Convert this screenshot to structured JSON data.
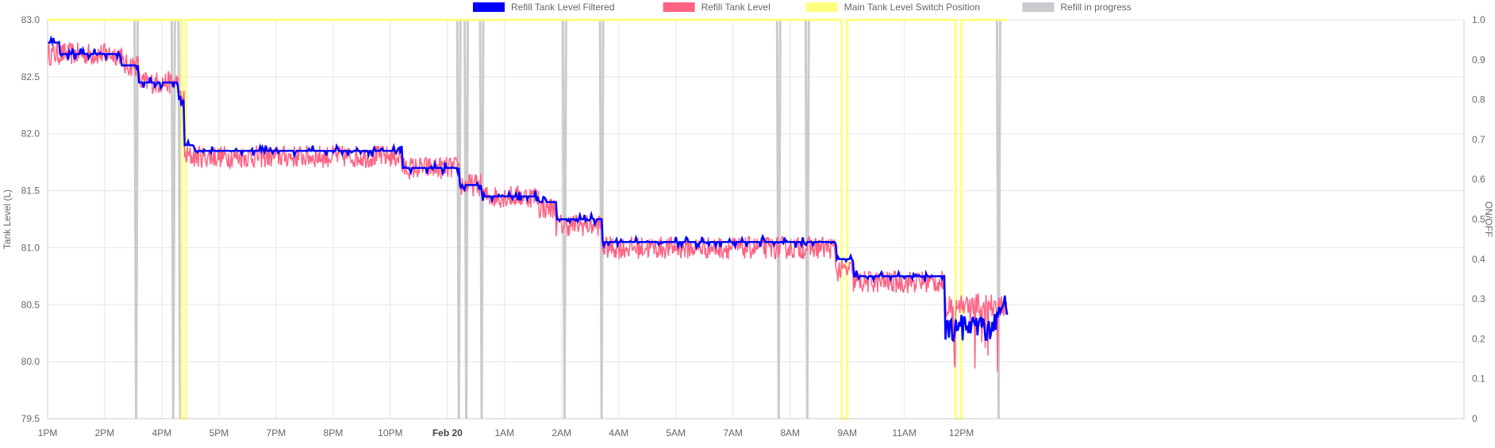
{
  "chart_data": {
    "type": "line",
    "title": "",
    "xlabel": "",
    "ylabel": "Tank Level (L)",
    "y2label": "ON/OFF",
    "ylim": [
      79.5,
      83.0
    ],
    "y2lim": [
      0,
      1
    ],
    "grid": true,
    "legend_position": "top-center",
    "y_ticks": [
      "83.0",
      "82.5",
      "82.0",
      "81.5",
      "81.0",
      "80.5",
      "80.0",
      "79.5"
    ],
    "y2_ticks": [
      "1.0",
      "0.9",
      "0.8",
      "0.7",
      "0.6",
      "0.5",
      "0.4",
      "0.3",
      "0.2",
      "0.1",
      "0"
    ],
    "x_range_hours": [
      0,
      24.8
    ],
    "x_ticks": [
      {
        "label": "1PM",
        "hour": 0,
        "bold": false
      },
      {
        "label": "2PM",
        "hour": 1,
        "bold": false
      },
      {
        "label": "4PM",
        "hour": 2,
        "bold": false
      },
      {
        "label": "5PM",
        "hour": 3,
        "bold": false
      },
      {
        "label": "7PM",
        "hour": 4,
        "bold": false
      },
      {
        "label": "8PM",
        "hour": 5,
        "bold": false
      },
      {
        "label": "10PM",
        "hour": 6,
        "bold": false
      },
      {
        "label": "Feb 20",
        "hour": 7,
        "bold": true
      },
      {
        "label": "1AM",
        "hour": 8,
        "bold": false
      },
      {
        "label": "2AM",
        "hour": 9,
        "bold": false
      },
      {
        "label": "4AM",
        "hour": 10,
        "bold": false
      },
      {
        "label": "5AM",
        "hour": 11,
        "bold": false
      },
      {
        "label": "7AM",
        "hour": 12,
        "bold": false
      },
      {
        "label": "8AM",
        "hour": 13,
        "bold": false
      },
      {
        "label": "9AM",
        "hour": 14,
        "bold": false
      },
      {
        "label": "11AM",
        "hour": 15,
        "bold": false
      },
      {
        "label": "12PM",
        "hour": 16,
        "bold": false
      }
    ],
    "series": [
      {
        "name": "Refill Tank Level Filtered",
        "color": "#0000ff",
        "axis": "left",
        "levels": [
          {
            "from": 0.0,
            "to": 0.2,
            "value": 82.8
          },
          {
            "from": 0.2,
            "to": 1.3,
            "value": 82.7
          },
          {
            "from": 1.3,
            "to": 1.6,
            "value": 82.6
          },
          {
            "from": 1.6,
            "to": 2.3,
            "value": 82.45
          },
          {
            "from": 2.3,
            "to": 2.4,
            "value": 82.3
          },
          {
            "from": 2.4,
            "to": 2.55,
            "value": 81.9
          },
          {
            "from": 2.55,
            "to": 6.2,
            "value": 81.85
          },
          {
            "from": 6.2,
            "to": 7.2,
            "value": 81.7
          },
          {
            "from": 7.2,
            "to": 7.6,
            "value": 81.55
          },
          {
            "from": 7.6,
            "to": 8.6,
            "value": 81.45
          },
          {
            "from": 8.6,
            "to": 8.9,
            "value": 81.4
          },
          {
            "from": 8.9,
            "to": 9.7,
            "value": 81.25
          },
          {
            "from": 9.7,
            "to": 13.8,
            "value": 81.05
          },
          {
            "from": 13.8,
            "to": 14.1,
            "value": 80.9
          },
          {
            "from": 14.1,
            "to": 15.7,
            "value": 80.75
          },
          {
            "from": 15.7,
            "to": 16.6,
            "value": 80.3
          },
          {
            "from": 16.6,
            "to": 16.8,
            "value": 80.5
          }
        ]
      },
      {
        "name": "Refill Tank Level",
        "color": "#ff6384",
        "axis": "left",
        "levels": [
          {
            "from": 0.0,
            "to": 1.3,
            "value": 82.7
          },
          {
            "from": 1.3,
            "to": 1.6,
            "value": 82.6
          },
          {
            "from": 1.6,
            "to": 2.3,
            "value": 82.45
          },
          {
            "from": 2.3,
            "to": 2.4,
            "value": 82.3
          },
          {
            "from": 2.4,
            "to": 6.2,
            "value": 81.8
          },
          {
            "from": 6.2,
            "to": 7.2,
            "value": 81.7
          },
          {
            "from": 7.2,
            "to": 7.6,
            "value": 81.55
          },
          {
            "from": 7.6,
            "to": 8.6,
            "value": 81.45
          },
          {
            "from": 8.6,
            "to": 8.9,
            "value": 81.35
          },
          {
            "from": 8.9,
            "to": 9.7,
            "value": 81.2
          },
          {
            "from": 9.7,
            "to": 13.8,
            "value": 81.0
          },
          {
            "from": 13.8,
            "to": 14.1,
            "value": 80.8
          },
          {
            "from": 14.1,
            "to": 15.7,
            "value": 80.7
          },
          {
            "from": 15.7,
            "to": 16.8,
            "value": 80.5
          }
        ]
      },
      {
        "name": "Main Tank Level Switch Position",
        "color": "#ffff80",
        "axis": "right",
        "off_windows": [
          {
            "from": 2.35,
            "to": 2.42
          },
          {
            "from": 13.9,
            "to": 14.0
          },
          {
            "from": 15.9,
            "to": 16.0
          }
        ]
      },
      {
        "name": "Refill in progress",
        "color": "#c9cbcf",
        "axis": "right",
        "pulses_at": [
          1.55,
          2.2,
          2.32,
          7.2,
          7.33,
          7.6,
          9.05,
          9.7,
          12.8,
          13.3,
          16.65
        ]
      }
    ]
  }
}
